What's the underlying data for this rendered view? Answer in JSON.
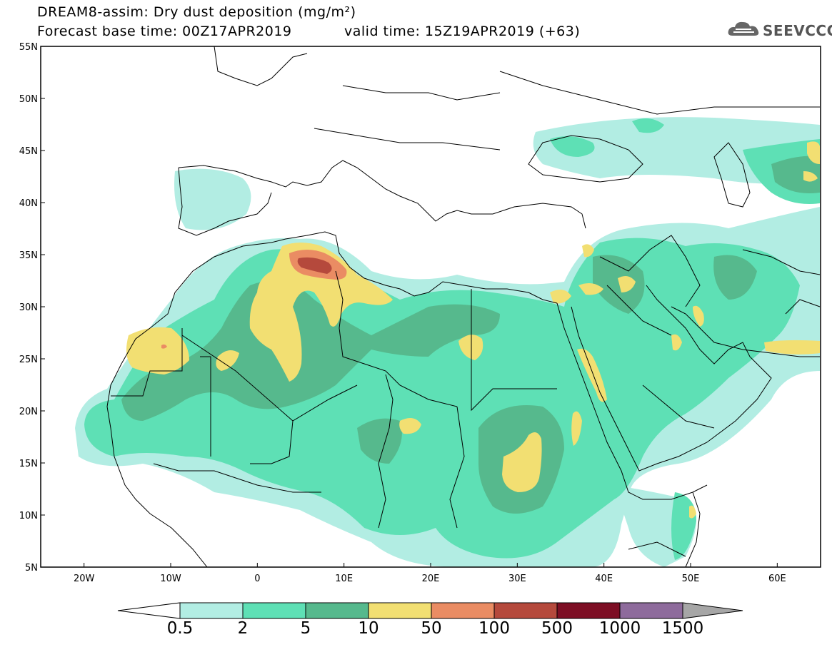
{
  "title": {
    "line1": "DREAM8-assim: Dry dust deposition (mg/m²)",
    "line2_left": "Forecast base time: 00Z17APR2019",
    "line2_right": "valid time: 15Z19APR2019 (+63)"
  },
  "logo": {
    "text": "SEEVCCC",
    "icon": "cloud-icon"
  },
  "map": {
    "lon_range": [
      -25,
      65
    ],
    "lat_range": [
      5,
      55
    ],
    "lat_ticks": [
      {
        "v": 55,
        "label": "55N"
      },
      {
        "v": 50,
        "label": "50N"
      },
      {
        "v": 45,
        "label": "45N"
      },
      {
        "v": 40,
        "label": "40N"
      },
      {
        "v": 35,
        "label": "35N"
      },
      {
        "v": 30,
        "label": "30N"
      },
      {
        "v": 25,
        "label": "25N"
      },
      {
        "v": 20,
        "label": "20N"
      },
      {
        "v": 15,
        "label": "15N"
      },
      {
        "v": 10,
        "label": "10N"
      },
      {
        "v": 5,
        "label": "5N"
      }
    ],
    "lon_ticks": [
      {
        "v": -20,
        "label": "20W"
      },
      {
        "v": -10,
        "label": "10W"
      },
      {
        "v": 0,
        "label": "0"
      },
      {
        "v": 10,
        "label": "10E"
      },
      {
        "v": 20,
        "label": "20E"
      },
      {
        "v": 30,
        "label": "30E"
      },
      {
        "v": 40,
        "label": "40E"
      },
      {
        "v": 50,
        "label": "50E"
      },
      {
        "v": 60,
        "label": "60E"
      }
    ]
  },
  "colorbar": {
    "colors": [
      "#b2ede3",
      "#5ee0b5",
      "#56b98d",
      "#f2df72",
      "#ea8c63",
      "#b5493c",
      "#7d0e24",
      "#8e6b9c"
    ],
    "labels": [
      "0.5",
      "2",
      "5",
      "10",
      "50",
      "100",
      "500",
      "1000",
      "1500"
    ],
    "arrow_low": "#ffffff",
    "arrow_high": "#a6a6a6"
  }
}
